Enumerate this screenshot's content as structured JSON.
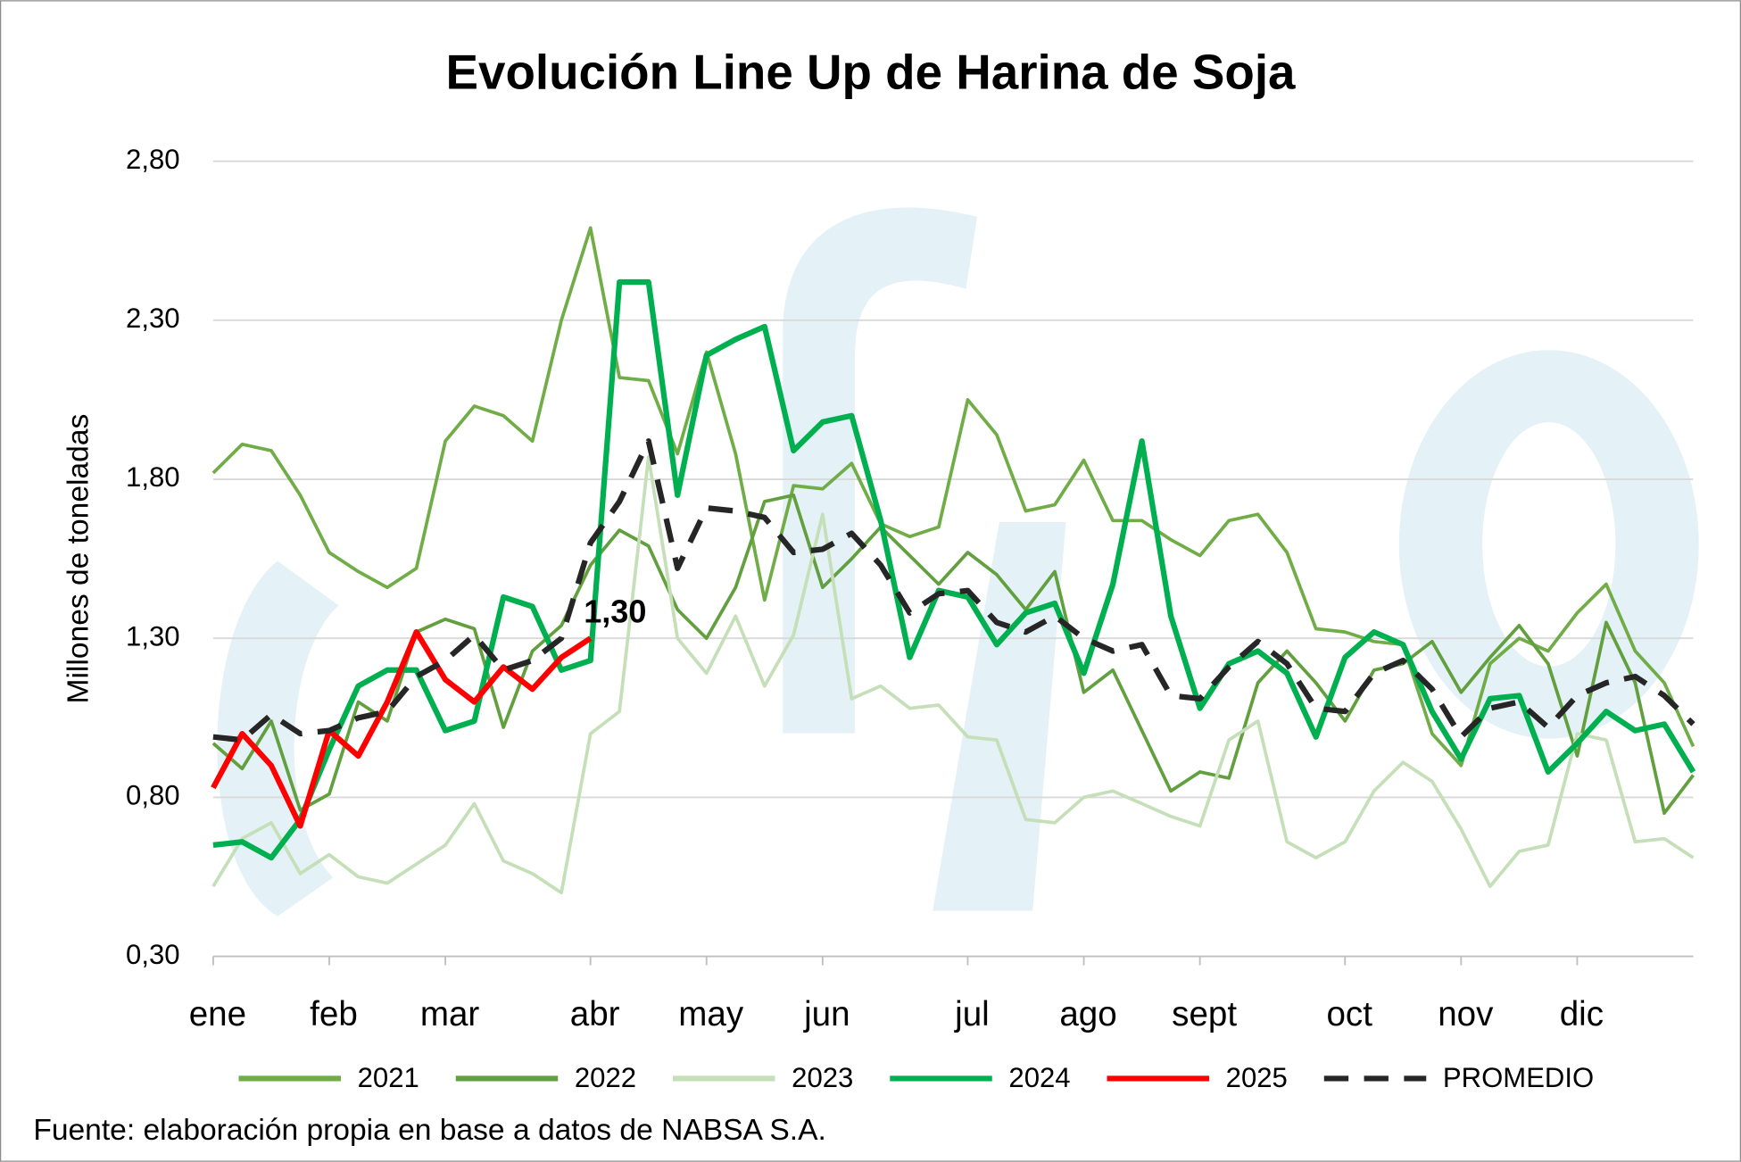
{
  "chart_data": {
    "type": "line",
    "title": "Evolución Line Up de Harina de Soja",
    "y_label": "Millones de toneladas",
    "source": "Fuente: elaboración propia en base a datos de NABSA S.A.",
    "categories": [
      "ene",
      null,
      null,
      null,
      "feb",
      null,
      null,
      null,
      "mar",
      null,
      null,
      null,
      null,
      "abr",
      null,
      null,
      null,
      "may",
      null,
      null,
      null,
      "jun",
      null,
      null,
      null,
      null,
      "jul",
      null,
      null,
      null,
      "ago",
      null,
      null,
      null,
      "sept",
      null,
      null,
      null,
      null,
      "oct",
      null,
      null,
      null,
      "nov",
      null,
      null,
      null,
      "dic",
      null,
      null,
      null,
      null
    ],
    "ylim": [
      0.3,
      2.8
    ],
    "yticks": [
      {
        "value": 0.3,
        "label": "0,30"
      },
      {
        "value": 0.8,
        "label": "0,80"
      },
      {
        "value": 1.3,
        "label": "1,30"
      },
      {
        "value": 1.8,
        "label": "1,80"
      },
      {
        "value": 2.3,
        "label": "2,30"
      },
      {
        "value": 2.8,
        "label": "2,80"
      }
    ],
    "grid": true,
    "legend": "bottom",
    "series": [
      {
        "name": "2021",
        "color": "#70ad47",
        "width": 3,
        "values": [
          1.82,
          1.91,
          1.89,
          1.75,
          1.57,
          1.51,
          1.46,
          1.52,
          1.92,
          2.03,
          2.0,
          1.92,
          2.3,
          2.59,
          2.12,
          2.11,
          1.88,
          2.2,
          1.88,
          1.42,
          1.78,
          1.77,
          1.85,
          1.66,
          1.62,
          1.65,
          2.05,
          1.94,
          1.7,
          1.72,
          1.86,
          1.67,
          1.67,
          1.61,
          1.56,
          1.67,
          1.69,
          1.57,
          1.33,
          1.32,
          1.29,
          1.28,
          1.0,
          0.9,
          1.22,
          1.3,
          1.26,
          1.38,
          1.47,
          1.26,
          1.16,
          0.96
        ]
      },
      {
        "name": "2022",
        "color": "#62a03f",
        "width": 3,
        "values": [
          0.97,
          0.89,
          1.04,
          0.76,
          0.81,
          1.1,
          1.04,
          1.32,
          1.36,
          1.33,
          1.02,
          1.26,
          1.34,
          1.53,
          1.64,
          1.59,
          1.39,
          1.3,
          1.46,
          1.73,
          1.75,
          1.46,
          1.55,
          1.65,
          1.56,
          1.47,
          1.57,
          1.5,
          1.39,
          1.51,
          1.13,
          1.2,
          1.01,
          0.82,
          0.88,
          0.86,
          1.16,
          1.26,
          1.16,
          1.04,
          1.2,
          1.22,
          1.29,
          1.13,
          1.24,
          1.34,
          1.22,
          0.93,
          1.35,
          1.16,
          0.75,
          0.87
        ]
      },
      {
        "name": "2023",
        "color": "#c5dfb8",
        "width": 3,
        "values": [
          0.52,
          0.67,
          0.72,
          0.56,
          0.62,
          0.55,
          0.53,
          0.59,
          0.65,
          0.78,
          0.6,
          0.56,
          0.5,
          1.0,
          1.07,
          1.87,
          1.3,
          1.19,
          1.37,
          1.15,
          1.31,
          1.69,
          1.11,
          1.15,
          1.08,
          1.09,
          0.99,
          0.98,
          0.73,
          0.72,
          0.8,
          0.82,
          0.78,
          0.74,
          0.71,
          0.98,
          1.04,
          0.66,
          0.61,
          0.66,
          0.82,
          0.91,
          0.85,
          0.7,
          0.52,
          0.63,
          0.65,
          1.0,
          0.98,
          0.66,
          0.67,
          0.61
        ]
      },
      {
        "name": "2024",
        "color": "#00b050",
        "width": 5,
        "values": [
          0.65,
          0.66,
          0.61,
          0.73,
          0.95,
          1.15,
          1.2,
          1.2,
          1.01,
          1.04,
          1.43,
          1.4,
          1.2,
          1.23,
          2.42,
          2.42,
          1.75,
          2.19,
          2.24,
          2.28,
          1.89,
          1.98,
          2.0,
          1.67,
          1.24,
          1.45,
          1.43,
          1.28,
          1.38,
          1.41,
          1.19,
          1.47,
          1.92,
          1.37,
          1.08,
          1.22,
          1.26,
          1.19,
          0.99,
          1.24,
          1.32,
          1.28,
          1.07,
          0.92,
          1.11,
          1.12,
          0.88,
          0.97,
          1.07,
          1.01,
          1.03,
          0.88
        ]
      },
      {
        "name": "2025",
        "color": "#ff0000",
        "width": 5,
        "values": [
          0.83,
          1.0,
          0.9,
          0.71,
          1.01,
          0.93,
          1.1,
          1.32,
          1.17,
          1.1,
          1.21,
          1.14,
          1.24,
          1.3,
          null,
          null,
          null,
          null,
          null,
          null,
          null,
          null,
          null,
          null,
          null,
          null,
          null,
          null,
          null,
          null,
          null,
          null,
          null,
          null,
          null,
          null,
          null,
          null,
          null,
          null,
          null,
          null,
          null,
          null,
          null,
          null,
          null,
          null,
          null,
          null,
          null,
          null
        ],
        "value_labels": [
          null,
          null,
          null,
          null,
          null,
          null,
          null,
          null,
          null,
          null,
          null,
          null,
          null,
          "1,30",
          null,
          null,
          null,
          null,
          null,
          null,
          null,
          null,
          null,
          null,
          null,
          null,
          null,
          null,
          null,
          null,
          null,
          null,
          null,
          null,
          null,
          null,
          null,
          null,
          null,
          null,
          null,
          null,
          null,
          null,
          null,
          null,
          null,
          null,
          null,
          null,
          null,
          null
        ]
      },
      {
        "name": "PROMEDIO",
        "color": "#262626",
        "width": 5,
        "dash": true,
        "values": [
          0.99,
          0.98,
          1.06,
          1.0,
          1.01,
          1.05,
          1.07,
          1.18,
          1.23,
          1.31,
          1.2,
          1.23,
          1.3,
          1.6,
          1.73,
          1.92,
          1.52,
          1.71,
          1.7,
          1.68,
          1.57,
          1.58,
          1.63,
          1.53,
          1.38,
          1.44,
          1.45,
          1.35,
          1.32,
          1.37,
          1.3,
          1.26,
          1.28,
          1.12,
          1.11,
          1.21,
          1.29,
          1.22,
          1.08,
          1.07,
          1.19,
          1.23,
          1.14,
          0.99,
          1.08,
          1.1,
          1.02,
          1.12,
          1.16,
          1.18,
          1.12,
          1.03
        ]
      }
    ]
  }
}
